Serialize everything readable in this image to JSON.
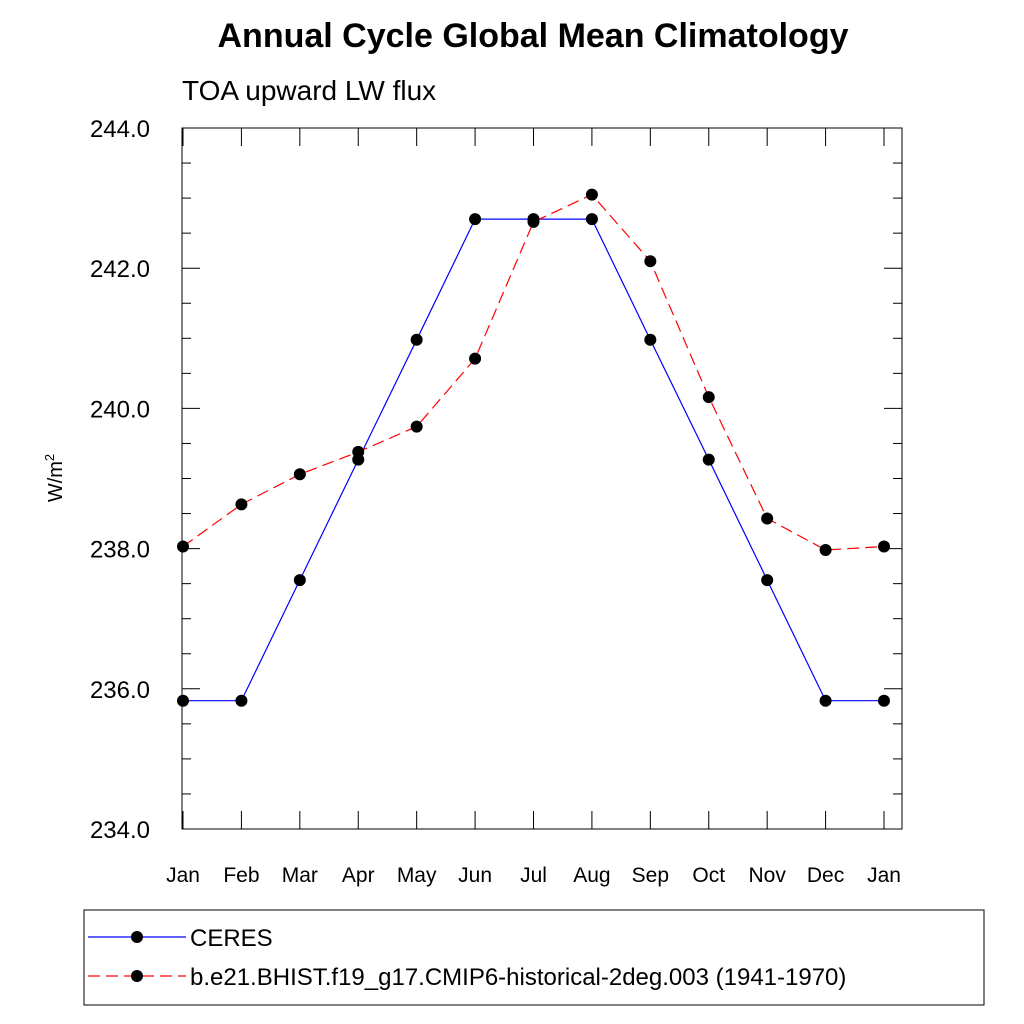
{
  "chart_data": {
    "type": "line",
    "title": "Annual Cycle Global Mean Climatology",
    "subtitle": "TOA upward LW flux",
    "xlabel": "",
    "ylabel": "W/m",
    "ylabel_superscript": "2",
    "categories": [
      "Jan",
      "Feb",
      "Mar",
      "Apr",
      "May",
      "Jun",
      "Jul",
      "Aug",
      "Sep",
      "Oct",
      "Nov",
      "Dec",
      "Jan"
    ],
    "ylim": [
      234.0,
      244.0
    ],
    "yticks": [
      "234.0",
      "236.0",
      "238.0",
      "240.0",
      "242.0",
      "244.0"
    ],
    "grid": false,
    "legend_position": "bottom",
    "series": [
      {
        "name": "CERES",
        "color": "#0000ff",
        "line_style": "solid",
        "marker": "filled-circle",
        "values": [
          235.83,
          235.83,
          237.55,
          239.27,
          240.98,
          242.7,
          242.7,
          242.7,
          240.98,
          239.27,
          237.55,
          235.83,
          235.83
        ]
      },
      {
        "name": "b.e21.BHIST.f19_g17.CMIP6-historical-2deg.003 (1941-1970)",
        "color": "#ff0000",
        "line_style": "dashed",
        "marker": "filled-circle",
        "values": [
          238.03,
          238.63,
          239.06,
          239.38,
          239.74,
          240.71,
          242.66,
          243.05,
          242.1,
          240.16,
          238.43,
          237.98,
          238.03
        ]
      }
    ]
  }
}
